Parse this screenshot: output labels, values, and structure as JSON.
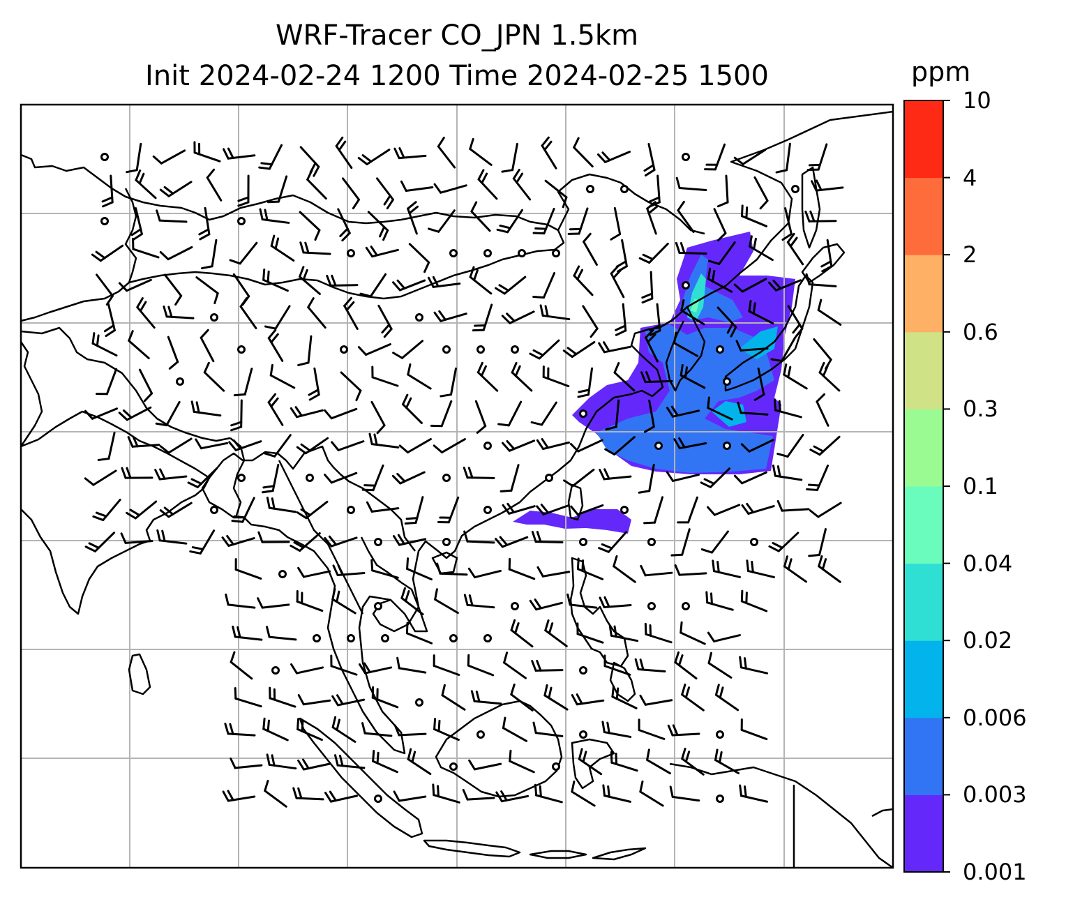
{
  "title": {
    "line1": "WRF-Tracer CO_JPN 1.5km",
    "line2": "Init 2024-02-24 1200 Time 2024-02-25 1500"
  },
  "colorbar": {
    "unit": "ppm",
    "levels": [
      "0.001",
      "0.003",
      "0.006",
      "0.02",
      "0.04",
      "0.1",
      "0.3",
      "0.6",
      "2",
      "4",
      "10"
    ],
    "colors": [
      "#6429fa",
      "#3275f4",
      "#02b3ec",
      "#30dfd4",
      "#69fcbd",
      "#9afb93",
      "#cfe286",
      "#feb064",
      "#fe6c3b",
      "#ff2a15"
    ]
  },
  "map": {
    "grid_color": "#b4b4b4",
    "coast_color": "#000000"
  }
}
